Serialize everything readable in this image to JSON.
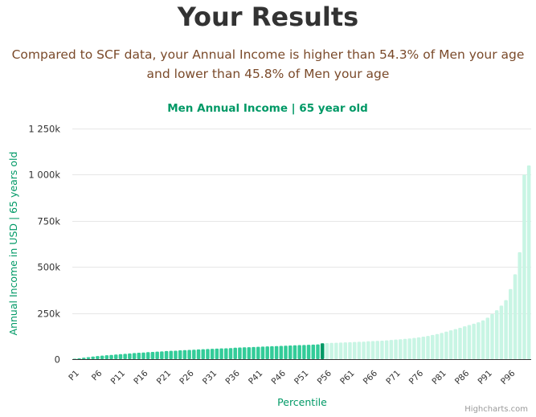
{
  "header": {
    "title": "Your Results",
    "line1": "Compared to SCF data, your Annual Income is higher than 54.3% of Men your age",
    "line2": "and lower than 45.8% of Men your age"
  },
  "credits": "Highcharts.com",
  "colors": {
    "below": "#33cc99",
    "user": "#009966",
    "above": "#c8f5e4",
    "title": "#009966",
    "axis_text": "#333333",
    "grid": "#e6e6e6"
  },
  "chart_data": {
    "type": "bar",
    "title": "Men Annual Income | 65 year old",
    "xlabel": "Percentile",
    "ylabel": "Annual Income in USD | 65 years old",
    "ylim": [
      0,
      1250000
    ],
    "yticks": [
      {
        "value": 0,
        "label": "0"
      },
      {
        "value": 250000,
        "label": "250k"
      },
      {
        "value": 500000,
        "label": "500k"
      },
      {
        "value": 750000,
        "label": "750k"
      },
      {
        "value": 1000000,
        "label": "1 000k"
      },
      {
        "value": 1250000,
        "label": "1 250k"
      }
    ],
    "tick_labels": [
      "P1",
      "P6",
      "P11",
      "P16",
      "P21",
      "P26",
      "P31",
      "P36",
      "P41",
      "P46",
      "P51",
      "P56",
      "P61",
      "P66",
      "P71",
      "P76",
      "P81",
      "P86",
      "P91",
      "P96"
    ],
    "categories": [
      "P1",
      "P2",
      "P3",
      "P4",
      "P5",
      "P6",
      "P7",
      "P8",
      "P9",
      "P10",
      "P11",
      "P12",
      "P13",
      "P14",
      "P15",
      "P16",
      "P17",
      "P18",
      "P19",
      "P20",
      "P21",
      "P22",
      "P23",
      "P24",
      "P25",
      "P26",
      "P27",
      "P28",
      "P29",
      "P30",
      "P31",
      "P32",
      "P33",
      "P34",
      "P35",
      "P36",
      "P37",
      "P38",
      "P39",
      "P40",
      "P41",
      "P42",
      "P43",
      "P44",
      "P45",
      "P46",
      "P47",
      "P48",
      "P49",
      "P50",
      "P51",
      "P52",
      "P53",
      "P54",
      "P55",
      "P56",
      "P57",
      "P58",
      "P59",
      "P60",
      "P61",
      "P62",
      "P63",
      "P64",
      "P65",
      "P66",
      "P67",
      "P68",
      "P69",
      "P70",
      "P71",
      "P72",
      "P73",
      "P74",
      "P75",
      "P76",
      "P77",
      "P78",
      "P79",
      "P80",
      "P81",
      "P82",
      "P83",
      "P84",
      "P85",
      "P86",
      "P87",
      "P88",
      "P89",
      "P90",
      "P91",
      "P92",
      "P93",
      "P94",
      "P95",
      "P96",
      "P97",
      "P98",
      "P99",
      "P100"
    ],
    "values": [
      2000,
      5000,
      8000,
      11000,
      14000,
      17000,
      19000,
      21000,
      23000,
      25000,
      27000,
      29000,
      31000,
      33000,
      35000,
      36000,
      38000,
      39000,
      41000,
      42000,
      44000,
      45000,
      46000,
      48000,
      49000,
      50000,
      51000,
      53000,
      54000,
      55000,
      56000,
      57000,
      58000,
      59000,
      60000,
      62000,
      63000,
      64000,
      65000,
      66000,
      67000,
      68000,
      69000,
      70000,
      71000,
      72000,
      73000,
      74000,
      75000,
      76000,
      77000,
      78000,
      79000,
      80000,
      86000,
      87000,
      88000,
      89000,
      90000,
      91000,
      92000,
      93000,
      94000,
      95000,
      97000,
      98000,
      99000,
      100000,
      102000,
      104000,
      106000,
      108000,
      110000,
      112000,
      115000,
      118000,
      122000,
      126000,
      131000,
      136000,
      142000,
      149000,
      156000,
      163000,
      170000,
      178000,
      185000,
      192000,
      200000,
      210000,
      225000,
      245000,
      265000,
      290000,
      320000,
      380000,
      460000,
      580000,
      1000000,
      1050000
    ],
    "user_percentile": "P55",
    "series_styles": [
      {
        "name": "below",
        "color": "#33cc99"
      },
      {
        "name": "user",
        "color": "#009966"
      },
      {
        "name": "above",
        "color": "#c8f5e4"
      }
    ]
  }
}
